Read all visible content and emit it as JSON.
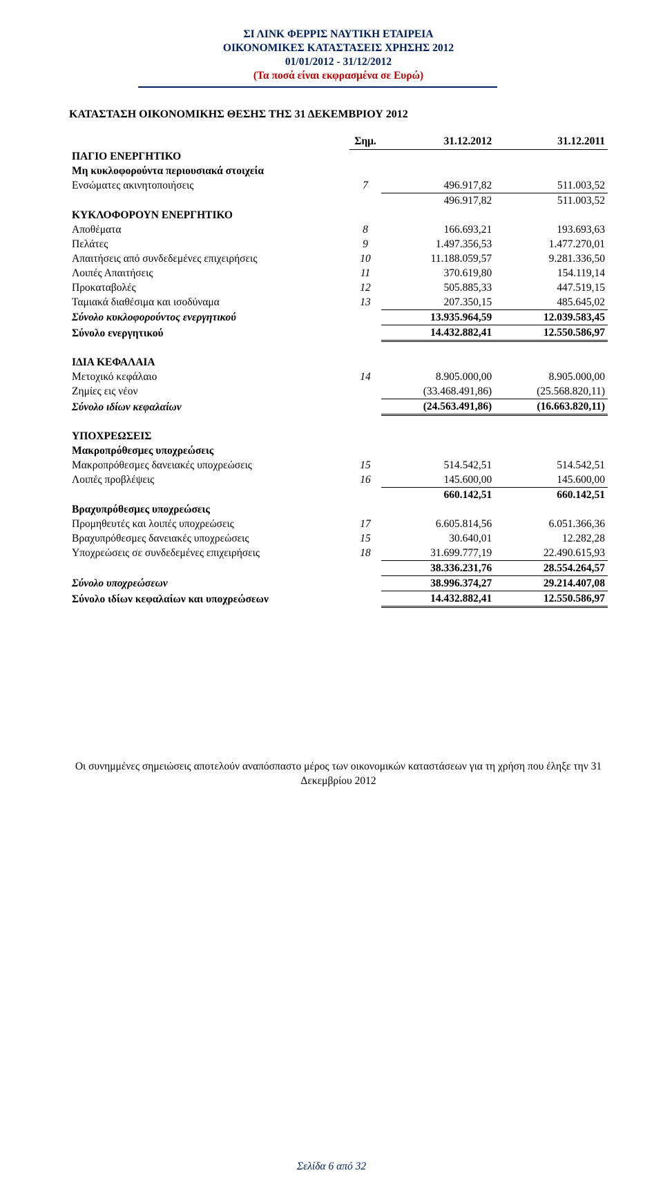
{
  "header": {
    "line1": "ΣΙ ΛΙΝΚ ΦΕΡΡΙΣ ΝΑΥΤΙΚΗ ΕΤΑΙΡΕΙΑ",
    "line2": "ΟΙΚΟΝΟΜΙΚΕΣ ΚΑΤΑΣΤΑΣΕΙΣ ΧΡΗΣΗΣ 2012",
    "line3": "01/01/2012 - 31/12/2012",
    "line4": "(Τα ποσά είναι εκφρασμένα σε  Ευρώ)"
  },
  "section_title": "ΚΑΤΑΣΤΑΣΗ ΟΙΚΟΝΟΜΙΚΗΣ ΘΕΣΗΣ  ΤΗΣ 31 ΔΕΚΕΜΒΡΙΟΥ 2012",
  "cols": {
    "note": "Σημ.",
    "c1": "31.12.2012",
    "c2": "31.12.2011"
  },
  "h_pagio": "ΠΑΓΙΟ ΕΝΕΡΓΗΤΙΚΟ",
  "h_nca": "Μη κυκλοφορούντα περιουσιακά στοιχεία",
  "r_ppe": {
    "l": "Ενσώματες ακινητοποιήσεις",
    "n": "7",
    "a": "496.917,82",
    "b": "511.003,52"
  },
  "r_nca_sub": {
    "a": "496.917,82",
    "b": "511.003,52"
  },
  "h_kyklo": "ΚΥΚΛΟΦΟΡΟΥΝ ΕΝΕΡΓΗΤΙΚΟ",
  "r_inv": {
    "l": "Αποθέματα",
    "n": "8",
    "a": "166.693,21",
    "b": "193.693,63"
  },
  "r_cust": {
    "l": "Πελάτες",
    "n": "9",
    "a": "1.497.356,53",
    "b": "1.477.270,01"
  },
  "r_rel": {
    "l": "Απαιτήσεις από συνδεδεμένες επιχειρήσεις",
    "n": "10",
    "a": "11.188.059,57",
    "b": "9.281.336,50"
  },
  "r_orec": {
    "l": "Λοιπές Απαιτήσεις",
    "n": "11",
    "a": "370.619,80",
    "b": "154.119,14"
  },
  "r_adv": {
    "l": "Προκαταβολές",
    "n": "12",
    "a": "505.885,33",
    "b": "447.519,15"
  },
  "r_cash": {
    "l": "Ταμιακά διαθέσιμα και ισοδύναμα",
    "n": "13",
    "a": "207.350,15",
    "b": "485.645,02"
  },
  "r_ca_sub": {
    "l": "Σύνολο κυκλοφορούντος ενεργητικού",
    "a": "13.935.964,59",
    "b": "12.039.583,45"
  },
  "r_ta": {
    "l": "Σύνολο ενεργητικού",
    "a": "14.432.882,41",
    "b": "12.550.586,97"
  },
  "h_equity": "ΙΔΙΑ ΚΕΦΑΛΑΙΑ",
  "r_share": {
    "l": "Μετοχικό κεφάλαιο",
    "n": "14",
    "a": "8.905.000,00",
    "b": "8.905.000,00"
  },
  "r_loss": {
    "l": "Ζημίες εις νέον",
    "a": "(33.468.491,86)",
    "b": "(25.568.820,11)"
  },
  "r_teq": {
    "l": "Σύνολο ιδίων κεφαλαίων",
    "a": "(24.563.491,86)",
    "b": "(16.663.820,11)"
  },
  "h_liab": "ΥΠΟΧΡΕΩΣΕΙΣ",
  "h_ltl": "Μακροπρόθεσμες υποχρεώσεις",
  "r_ltloan": {
    "l": "Μακροπρόθεσμες δανειακές υποχρεώσεις",
    "n": "15",
    "a": "514.542,51",
    "b": "514.542,51"
  },
  "r_prov": {
    "l": "Λοιπές προβλέψεις",
    "n": "16",
    "a": "145.600,00",
    "b": "145.600,00"
  },
  "r_ltsub": {
    "a": "660.142,51",
    "b": "660.142,51"
  },
  "h_stl": "Βραχυπρόθεσμες υποχρεώσεις",
  "r_trade": {
    "l": "Προμηθευτές και λοιπές υποχρεώσεις",
    "n": "17",
    "a": "6.605.814,56",
    "b": "6.051.366,36"
  },
  "r_stloan": {
    "l": "Βραχυπρόθεσμες δανειακές υποχρεώσεις",
    "n": "15",
    "a": "30.640,01",
    "b": "12.282,28"
  },
  "r_relpay": {
    "l": "Υποχρεώσεις σε συνδεδεμένες επιχειρήσεις",
    "n": "18",
    "a": "31.699.777,19",
    "b": "22.490.615,93"
  },
  "r_stsub": {
    "a": "38.336.231,76",
    "b": "28.554.264,57"
  },
  "r_tliab": {
    "l": "Σύνολο υποχρεώσεων",
    "a": "38.996.374,27",
    "b": "29.214.407,08"
  },
  "r_teql": {
    "l": "Σύνολο ιδίων κεφαλαίων και υποχρεώσεων",
    "a": "14.432.882,41",
    "b": "12.550.586,97"
  },
  "footnote": "Οι συνημμένες  σημειώσεις  αποτελούν αναπόσπαστο μέρος των οικονομικών  καταστάσεων για τη χρήση που έληξε την 31 Δεκεμβρίου 2012",
  "pagenum": "Σελίδα 6 από 32"
}
